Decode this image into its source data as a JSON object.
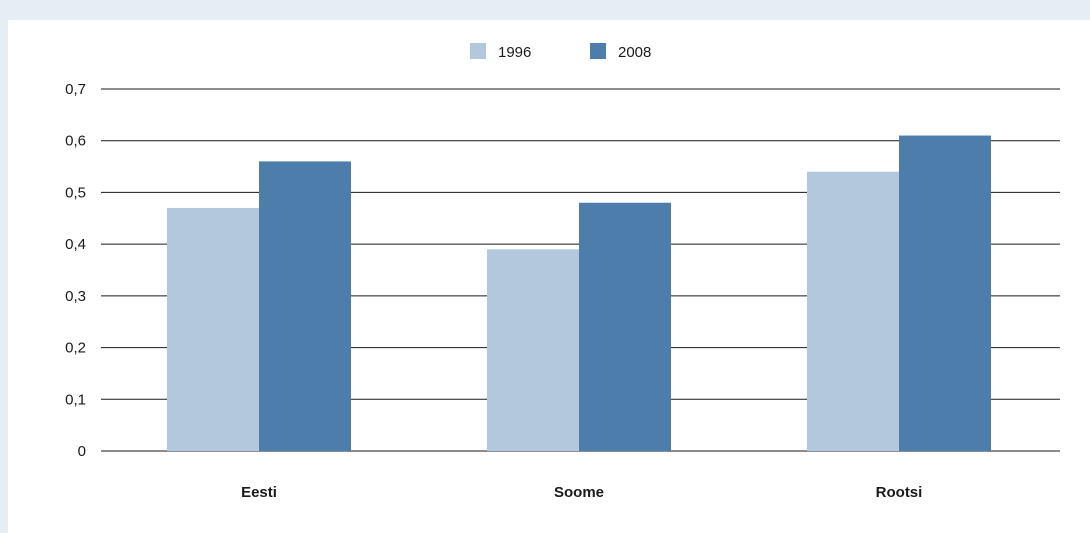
{
  "chart_data": {
    "type": "bar",
    "categories": [
      "Eesti",
      "Soome",
      "Rootsi"
    ],
    "series": [
      {
        "name": "1996",
        "values": [
          0.47,
          0.39,
          0.54
        ],
        "color": "#b3c8dc"
      },
      {
        "name": "2008",
        "values": [
          0.56,
          0.48,
          0.61
        ],
        "color": "#4c7dab"
      }
    ],
    "title": "",
    "xlabel": "",
    "ylabel": "",
    "ylim": [
      0,
      0.7
    ],
    "yticks": [
      "0",
      "0,1",
      "0,2",
      "0,3",
      "0,4",
      "0,5",
      "0,6",
      "0,7"
    ],
    "grid": true,
    "legend_position": "top-center"
  }
}
